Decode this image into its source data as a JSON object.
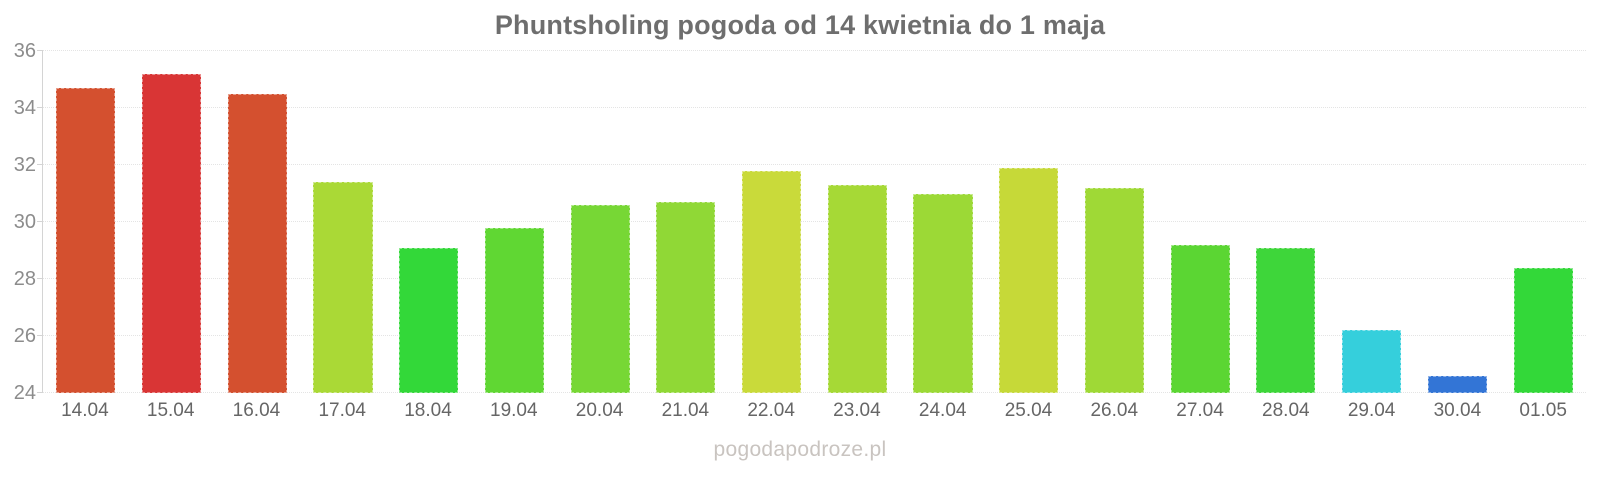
{
  "chart_data": {
    "type": "bar",
    "title": "Phuntsholing pogoda od 14 kwietnia do 1 maja",
    "categories": [
      "14.04",
      "15.04",
      "16.04",
      "17.04",
      "18.04",
      "19.04",
      "20.04",
      "21.04",
      "22.04",
      "23.04",
      "24.04",
      "25.04",
      "26.04",
      "27.04",
      "28.04",
      "29.04",
      "30.04",
      "01.05"
    ],
    "values": [
      34.7,
      35.2,
      34.5,
      31.4,
      29.1,
      29.8,
      30.6,
      30.7,
      31.8,
      31.3,
      31.0,
      31.9,
      31.2,
      29.2,
      29.1,
      26.2,
      24.6,
      28.4
    ],
    "bar_colors": [
      "#d4502f",
      "#d93535",
      "#d4502f",
      "#aad936",
      "#33d839",
      "#60d733",
      "#77d735",
      "#90d836",
      "#c9da3a",
      "#a6d936",
      "#9cd936",
      "#c6d938",
      "#9fd936",
      "#5bd633",
      "#3ed63a",
      "#35cfdc",
      "#3375d6",
      "#33d839"
    ],
    "ylabel": "",
    "xlabel": "",
    "ylim": [
      24,
      36
    ],
    "yticks": [
      24,
      26,
      28,
      30,
      32,
      34,
      36
    ],
    "grid": true,
    "legend": false
  },
  "footer": {
    "watermark": "pogodapodroze.pl"
  },
  "colors": {
    "title_text": "#6e6e6e",
    "axis_line": "#d4d4d4",
    "grid_line": "#e4e4e4",
    "y_tick_text": "#8c8c8c",
    "x_tick_text": "#666666",
    "watermark_text": "#c9c4c0",
    "background": "#ffffff"
  }
}
